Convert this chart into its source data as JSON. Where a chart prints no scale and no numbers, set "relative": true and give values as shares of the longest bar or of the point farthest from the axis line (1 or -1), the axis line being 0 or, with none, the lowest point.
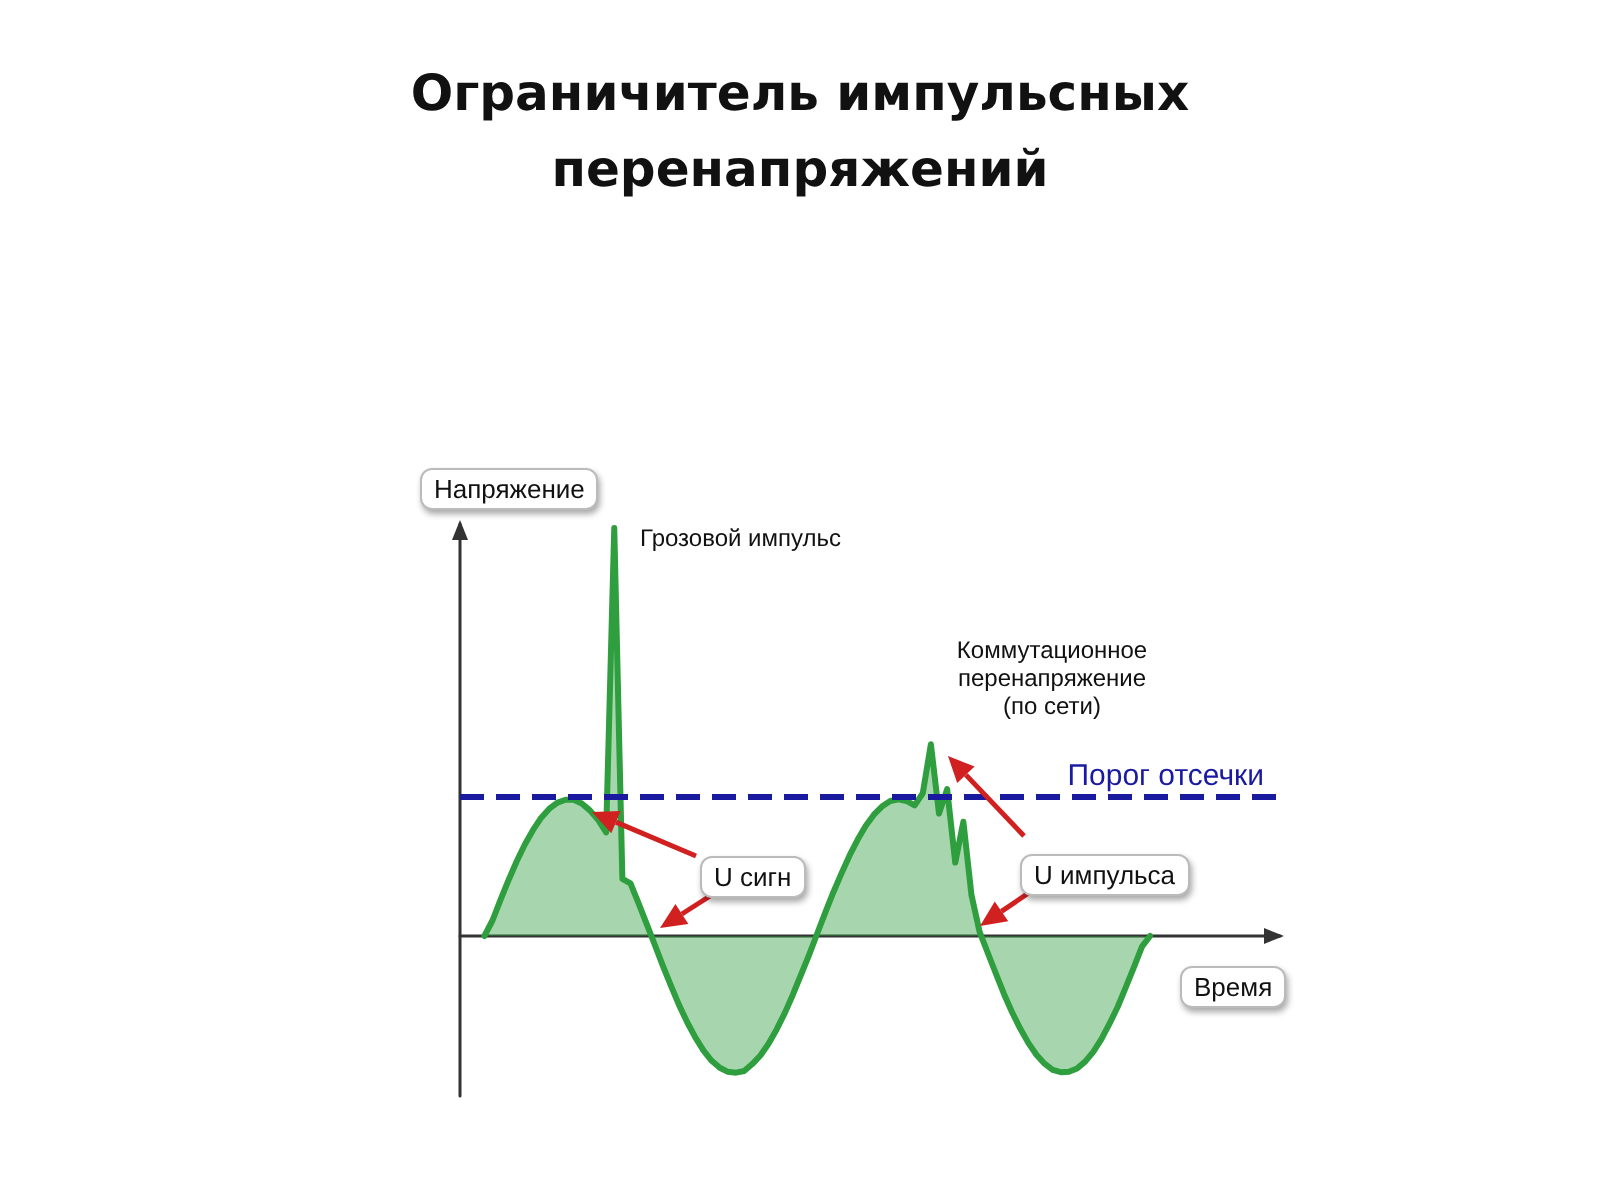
{
  "chart_data": {
    "type": "area",
    "title": "Ограничитель импульсных перенапряжений",
    "xlabel": "Время",
    "ylabel": "Напряжение",
    "relative": true,
    "line_style": "solid",
    "categories": [
      null,
      null,
      null,
      null,
      null,
      null,
      null,
      null,
      null,
      null,
      null,
      null,
      null,
      null,
      null,
      null,
      null,
      null,
      null,
      null,
      null,
      null,
      null,
      null,
      null,
      null,
      null,
      null,
      null,
      null,
      null,
      null,
      null,
      null,
      null,
      null,
      null,
      null,
      null,
      null,
      null,
      null,
      null,
      null,
      null,
      null,
      null,
      null,
      null,
      null,
      null,
      null,
      null,
      null,
      null,
      null,
      null,
      null,
      null,
      null,
      null,
      null,
      null,
      null,
      null,
      null,
      null,
      null,
      null,
      null,
      null,
      null,
      null,
      null,
      null,
      null,
      null,
      null,
      null,
      null,
      null,
      null,
      null,
      null,
      null,
      null,
      null,
      null,
      null,
      null,
      null,
      null,
      null,
      null,
      null,
      null,
      null,
      null,
      null,
      null,
      null,
      null
    ],
    "series": [
      {
        "color": "#2e9e3e",
        "values": [
          null,
          null,
          null,
          0,
          0.038,
          0.089,
          0.138,
          0.184,
          0.225,
          0.26,
          0.29,
          0.312,
          0.327,
          0.334,
          0.334,
          0.325,
          0.308,
          0.285,
          0.254,
          1.0,
          0.14,
          0.129,
          0.08,
          0.029,
          -0.022,
          -0.074,
          -0.123,
          -0.17,
          -0.212,
          -0.249,
          -0.281,
          -0.306,
          -0.323,
          -0.333,
          -0.335,
          -0.331,
          -0.314,
          -0.293,
          -0.264,
          -0.229,
          -0.189,
          -0.144,
          -0.095,
          -0.046,
          0.006,
          0.058,
          0.108,
          0.154,
          0.198,
          0.237,
          0.271,
          0.298,
          0.318,
          0.331,
          0.335,
          0.331,
          0.32,
          0.35,
          0.47,
          0.3,
          0.36,
          0.18,
          0.28,
          0.1,
          0.01,
          -0.041,
          -0.092,
          -0.142,
          -0.187,
          -0.227,
          -0.262,
          -0.291,
          -0.313,
          -0.328,
          -0.334,
          -0.333,
          -0.325,
          -0.308,
          -0.284,
          -0.253,
          -0.215,
          -0.174,
          -0.126,
          -0.077,
          -0.026,
          0,
          null,
          null,
          null,
          null,
          null,
          null,
          null,
          null,
          null,
          null,
          null,
          null,
          null,
          null,
          null,
          null
        ]
      }
    ],
    "ref_lines": [
      {
        "axis": "y",
        "value": 0.335,
        "label": "Порог отсечки",
        "color": "#1a1aa0",
        "line_style": "dashed"
      }
    ],
    "annotations": [
      "Грозовой импульс",
      "Коммутационное перенапряжение (по сети)",
      "U сигн",
      "U импульса"
    ]
  }
}
